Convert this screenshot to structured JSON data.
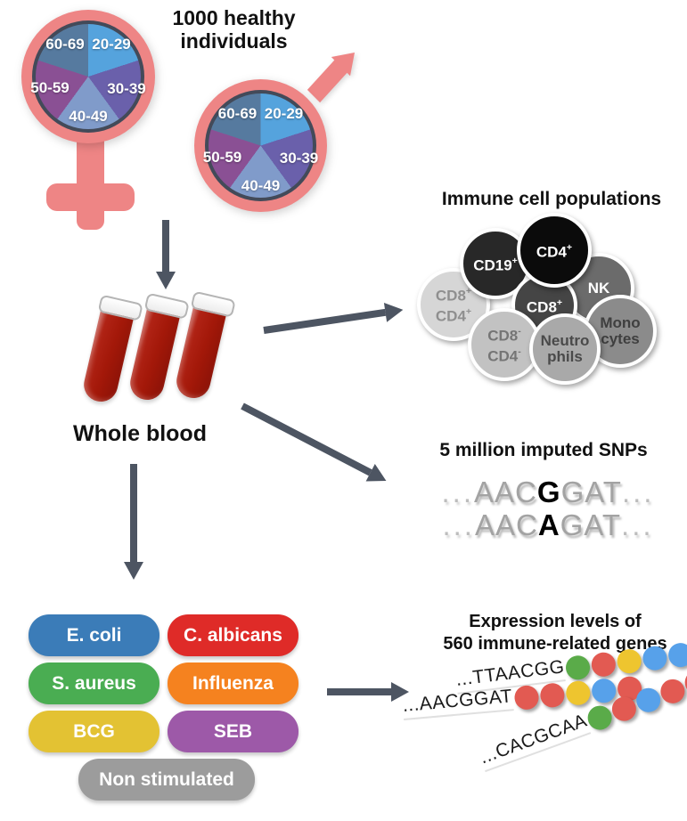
{
  "colors": {
    "gender_symbol": "#ee8585",
    "arrow": "#4d5562",
    "pie_border": "#434a59",
    "tube_blood": "#a31809"
  },
  "cohort": {
    "title_line1": "1000 healthy",
    "title_line2": "individuals",
    "age_groups": [
      {
        "label": "20-29",
        "color": "#55a3dd"
      },
      {
        "label": "30-39",
        "color": "#6a60ab"
      },
      {
        "label": "40-49",
        "color": "#809bca"
      },
      {
        "label": "50-59",
        "color": "#8a5094"
      },
      {
        "label": "60-69",
        "color": "#567a9f"
      }
    ]
  },
  "whole_blood": {
    "label": "Whole blood"
  },
  "immune_cells": {
    "title": "Immune cell populations",
    "cells": [
      {
        "lines": [
          "CD8+",
          "CD4+"
        ],
        "fill": "#d6d6d6",
        "text": "#8f8f8f"
      },
      {
        "lines": [
          "CD19+"
        ],
        "fill": "#282828",
        "text": "#ffffff"
      },
      {
        "lines": [
          "NK"
        ],
        "fill": "#6b6b6b",
        "text": "#ffffff"
      },
      {
        "lines": [
          "CD8+"
        ],
        "fill": "#454545",
        "text": "#ffffff"
      },
      {
        "lines": [
          "CD4+"
        ],
        "fill": "#0b0b0b",
        "text": "#ffffff"
      },
      {
        "lines": [
          "Mono",
          "cytes"
        ],
        "fill": "#8b8b8b",
        "text": "#3f3f3f"
      },
      {
        "lines": [
          "CD8-",
          "CD4-"
        ],
        "fill": "#c2c2c2",
        "text": "#757575"
      },
      {
        "lines": [
          "Neutro",
          "phils"
        ],
        "fill": "#a9a9a9",
        "text": "#4a4a4a"
      }
    ]
  },
  "snps": {
    "title": "5 million imputed SNPs",
    "sequences": [
      {
        "prefix": "...",
        "before": "AAC",
        "snp": "G",
        "after": "GAT",
        "suffix": "..."
      },
      {
        "prefix": "...",
        "before": "AAC",
        "snp": "A",
        "after": "GAT",
        "suffix": "..."
      }
    ]
  },
  "stimulations": {
    "items": [
      {
        "label": "E. coli",
        "color": "#3b7cb8"
      },
      {
        "label": "C. albicans",
        "color": "#df2b28"
      },
      {
        "label": "S. aureus",
        "color": "#4aad52"
      },
      {
        "label": "Influenza",
        "color": "#f5821f"
      },
      {
        "label": "BCG",
        "color": "#e3c233"
      },
      {
        "label": "SEB",
        "color": "#9d59a8"
      },
      {
        "label": "Non stimulated",
        "color": "#9c9c9c"
      }
    ]
  },
  "expression": {
    "title_line1": "Expression levels of",
    "title_line2": "560 immune-related genes",
    "dot_colors": {
      "green": "#5aab49",
      "red": "#e25a52",
      "yellow": "#eec52f",
      "blue": "#57a1ea"
    },
    "strands": [
      {
        "sequence": "...TTAACGG",
        "dots": [
          "green",
          "red",
          "yellow",
          "blue",
          "blue"
        ]
      },
      {
        "sequence": "...AACGGAT",
        "dots": [
          "red",
          "red",
          "yellow",
          "blue",
          "red"
        ]
      },
      {
        "sequence": "...CACGCAA",
        "dots": [
          "green",
          "red",
          "blue",
          "red",
          "red"
        ]
      }
    ]
  }
}
